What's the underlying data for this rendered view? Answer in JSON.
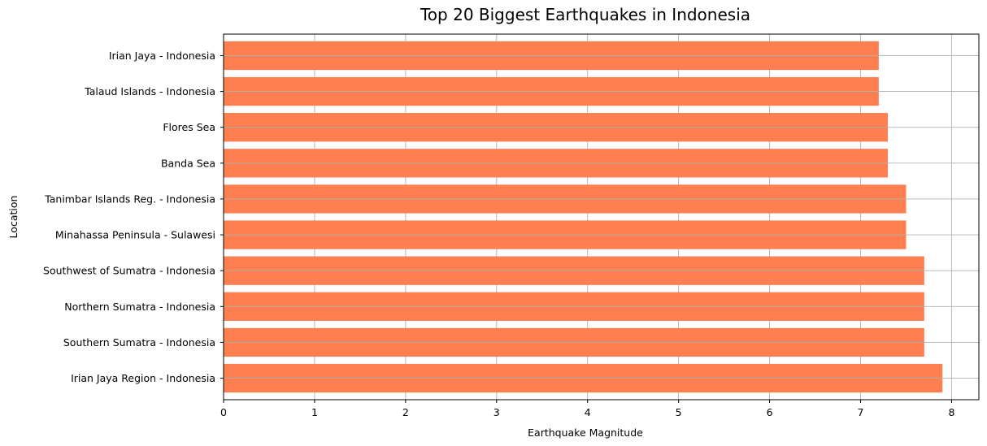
{
  "chart_data": {
    "type": "bar",
    "orientation": "horizontal",
    "title": "Top 20 Biggest Earthquakes in Indonesia",
    "xlabel": "Earthquake Magnitude",
    "ylabel": "Location",
    "xlim": [
      0,
      8.3
    ],
    "xticks": [
      0,
      1,
      2,
      3,
      4,
      5,
      6,
      7,
      8
    ],
    "grid": true,
    "bar_color": "#ff7f50",
    "categories": [
      "Irian Jaya Region - Indonesia",
      "Southern Sumatra - Indonesia",
      "Northern Sumatra - Indonesia",
      "Southwest of Sumatra - Indonesia",
      "Minahassa Peninsula - Sulawesi",
      "Tanimbar Islands Reg. - Indonesia",
      "Banda Sea",
      "Flores Sea",
      "Talaud Islands - Indonesia",
      "Irian Jaya - Indonesia"
    ],
    "values": [
      7.9,
      7.7,
      7.7,
      7.7,
      7.5,
      7.5,
      7.3,
      7.3,
      7.2,
      7.2
    ]
  }
}
